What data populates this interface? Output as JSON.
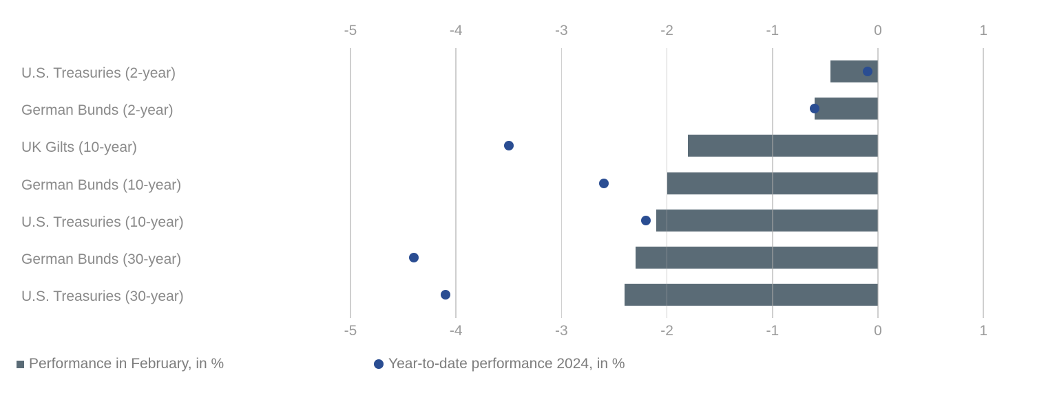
{
  "chart_data": {
    "type": "bar",
    "orientation": "horizontal",
    "title": "",
    "xlabel": "",
    "ylabel": "",
    "categories": [
      "U.S. Treasuries (2-year)",
      "German Bunds (2-year)",
      "UK Gilts (10-year)",
      "German Bunds (10-year)",
      "U.S. Treasuries (10-year)",
      "German Bunds (30-year)",
      "U.S. Treasuries (30-year)"
    ],
    "series": [
      {
        "name": "Performance in February, in %",
        "type": "bar",
        "marker": "square",
        "color": "#5a6b76",
        "values": [
          -0.45,
          -0.6,
          -1.8,
          -2.0,
          -2.1,
          -2.3,
          -2.4
        ]
      },
      {
        "name": "Year-to-date performance 2024, in %",
        "type": "scatter",
        "marker": "circle",
        "color": "#2a4d92",
        "values": [
          -0.1,
          -0.6,
          -3.5,
          -2.6,
          -2.2,
          -4.4,
          -4.1
        ]
      }
    ],
    "x_ticks": [
      "-5",
      "-4",
      "-3",
      "-2",
      "-1",
      "0",
      "1"
    ],
    "x_tick_values": [
      -5,
      -4,
      -3,
      -2,
      -1,
      0,
      1
    ],
    "xlim": [
      -5,
      1
    ],
    "grid": true,
    "tick_labels_position": "top_and_bottom",
    "legend_position": "bottom",
    "colors": {
      "bar": "#5a6b76",
      "dot": "#2a4d92",
      "gridline": "#d2d2d2",
      "tick_label": "#9b9b9b",
      "category_label": "#8a8a8a",
      "legend_text": "#7d7d7d",
      "background": "#ffffff"
    }
  }
}
